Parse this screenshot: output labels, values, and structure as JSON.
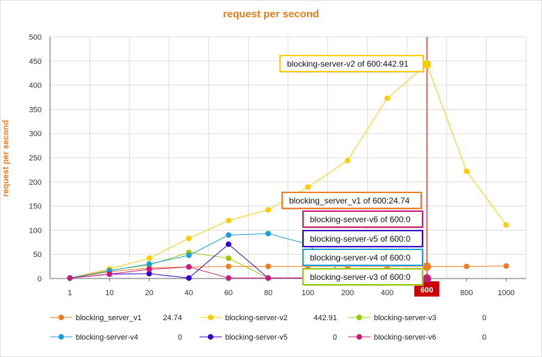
{
  "chart_data": {
    "type": "line",
    "title": "request per second",
    "ylabel": "request per second",
    "xlabel": "",
    "categories": [
      "1",
      "10",
      "20",
      "40",
      "60",
      "80",
      "100",
      "200",
      "400",
      "600",
      "800",
      "1000"
    ],
    "ylim": [
      0,
      500
    ],
    "yticks": [
      0,
      50,
      100,
      150,
      200,
      250,
      300,
      350,
      400,
      450,
      500
    ],
    "grid": true,
    "legend_position": "bottom",
    "highlight_category": "600",
    "series": [
      {
        "name": "blocking_server_v1",
        "color": "#f47c20",
        "values": [
          1,
          14,
          22,
          24,
          25,
          25,
          25,
          25,
          25,
          24.74,
          25,
          26
        ],
        "legend_value": "24.74",
        "tooltip": "blocking_server_v1 of 600:24.74"
      },
      {
        "name": "blocking-server-v2",
        "color": "#ffcc00",
        "values": [
          1,
          20,
          42,
          83,
          120,
          142,
          189,
          244,
          373,
          442.91,
          222,
          111
        ],
        "legend_value": "442.91",
        "tooltip": "blocking-server-v2 of 600:442.91"
      },
      {
        "name": "blocking-server-v3",
        "color": "#99cc00",
        "values": [
          1,
          17,
          28,
          54,
          42,
          1,
          1,
          1,
          1,
          0,
          null,
          null
        ],
        "legend_value": "0",
        "tooltip": "blocking-server-v3 of 600:0"
      },
      {
        "name": "blocking-server-v4",
        "color": "#1f9fd8",
        "values": [
          1,
          16,
          30,
          48,
          90,
          93,
          71,
          1,
          1,
          0,
          null,
          null
        ],
        "legend_value": "0",
        "tooltip": "blocking-server-v4 of 600:0"
      },
      {
        "name": "blocking-server-v5",
        "color": "#3300cc",
        "values": [
          1,
          9,
          10,
          1,
          71,
          1,
          1,
          1,
          1,
          0,
          null,
          null
        ],
        "legend_value": "0",
        "tooltip": "blocking-server-v5 of 600:0"
      },
      {
        "name": "blocking-server-v6",
        "color": "#cc1a7a",
        "values": [
          1,
          9,
          19,
          24,
          1,
          1,
          1,
          1,
          1,
          0,
          null,
          null
        ],
        "legend_value": "0",
        "tooltip": "blocking-server-v6 of 600:0"
      }
    ]
  }
}
